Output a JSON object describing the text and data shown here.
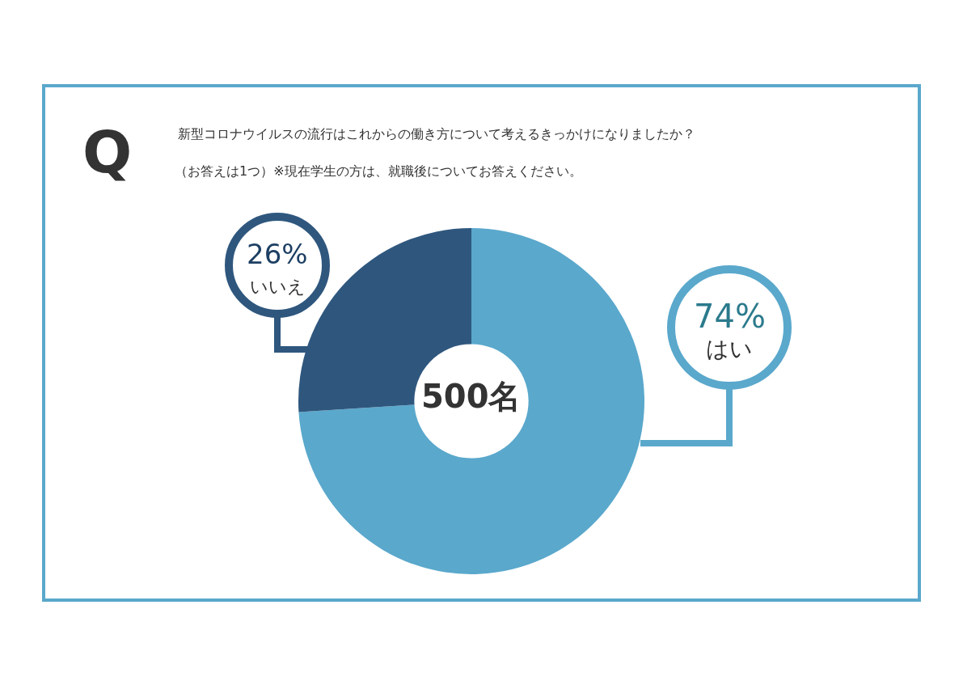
{
  "chart_data": {
    "type": "donut",
    "title": "新型コロナウイルスの流行はこれからの働き方について考えるきっかけになりましたか？",
    "subtitle": "（お答えは1つ）※現在学生の方は、就職後についてお答えください。",
    "categories": [
      "はい",
      "いいえ"
    ],
    "values": [
      74,
      26
    ],
    "value_labels": [
      "74%",
      "26%"
    ],
    "colors": [
      "#5aa8cc",
      "#2f577e"
    ],
    "annotations": [
      "Q",
      "500名"
    ],
    "legend": false
  }
}
